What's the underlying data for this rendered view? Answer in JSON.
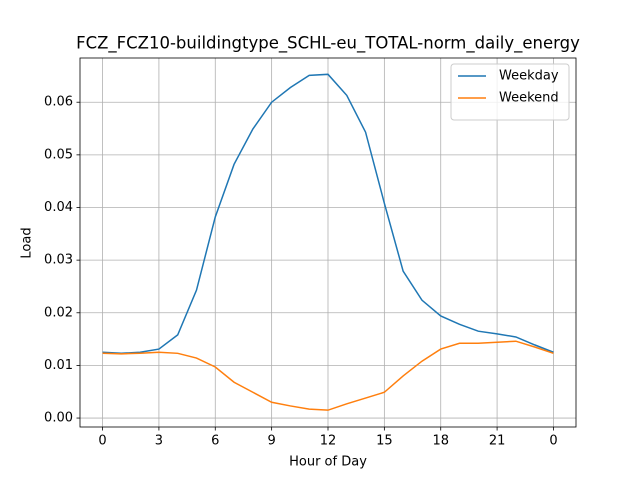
{
  "chart_data": {
    "type": "line",
    "title": "FCZ_FCZ10-buildingtype_SCHL-eu_TOTAL-norm_daily_energy",
    "x_label": "Hour of Day",
    "y_label": "Load",
    "x": [
      0,
      1,
      2,
      3,
      4,
      5,
      6,
      7,
      8,
      9,
      10,
      11,
      12,
      13,
      14,
      15,
      16,
      17,
      18,
      19,
      20,
      21,
      22,
      23,
      24
    ],
    "series": [
      {
        "name": "Weekday",
        "color": "#1f77b4",
        "values": [
          0.0125,
          0.0123,
          0.0125,
          0.0131,
          0.0158,
          0.0243,
          0.0382,
          0.0482,
          0.0549,
          0.06,
          0.0628,
          0.0651,
          0.0653,
          0.0613,
          0.0543,
          0.0408,
          0.0279,
          0.0224,
          0.0194,
          0.0178,
          0.0165,
          0.016,
          0.0154,
          0.0139,
          0.0125
        ]
      },
      {
        "name": "Weekend",
        "color": "#ff7f0e",
        "values": [
          0.0123,
          0.0122,
          0.0123,
          0.0125,
          0.0123,
          0.0114,
          0.0097,
          0.0068,
          0.0049,
          0.003,
          0.0023,
          0.0017,
          0.0015,
          0.0027,
          0.0038,
          0.0049,
          0.008,
          0.0108,
          0.0131,
          0.0142,
          0.0142,
          0.0144,
          0.0146,
          0.0135,
          0.0123
        ]
      }
    ],
    "xlim": [
      -1.2,
      25.2
    ],
    "xticks": [
      0,
      3,
      6,
      9,
      12,
      15,
      18,
      21,
      {
        "value": 24,
        "label": "0"
      }
    ],
    "ylim": [
      -0.0017,
      0.0684
    ],
    "yticks": [
      {
        "value": 0,
        "label": "0.00"
      },
      0.01,
      0.02,
      0.03,
      0.04,
      0.05,
      0.06
    ],
    "grid": true,
    "legend": "upper-right"
  }
}
